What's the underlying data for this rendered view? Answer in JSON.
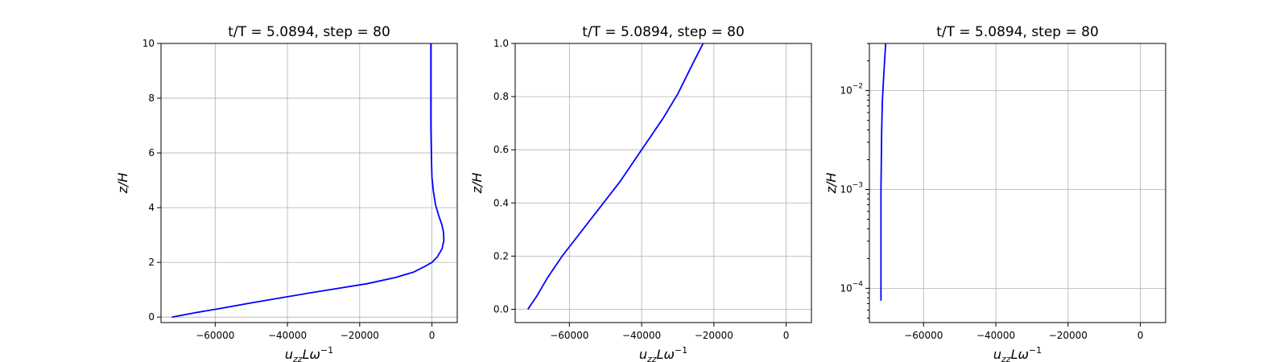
{
  "chart_data": [
    {
      "type": "line",
      "title": "t/T = 5.0894, step = 80",
      "xlabel": "u_zz L ω^-1",
      "ylabel": "z/H",
      "xlim": [
        -75000,
        7000
      ],
      "ylim": [
        -0.2,
        10
      ],
      "yscale": "linear",
      "xticks": [
        -60000,
        -40000,
        -20000,
        0
      ],
      "xtick_labels": [
        "−60000",
        "−40000",
        "−20000",
        "0"
      ],
      "yticks": [
        0,
        2,
        4,
        6,
        8,
        10
      ],
      "ytick_labels": [
        "0",
        "2",
        "4",
        "6",
        "8",
        "10"
      ],
      "grid": true,
      "series": [
        {
          "color": "#0000ff",
          "x": [
            -72000,
            -66000,
            -58000,
            -50000,
            -42000,
            -34000,
            -26000,
            -18000,
            -10000,
            -5000,
            -2000,
            0,
            1500,
            2800,
            3300,
            3200,
            2700,
            1900,
            1000,
            400,
            0,
            -100,
            -200,
            -300,
            -300,
            -300,
            -300
          ],
          "y": [
            0,
            0.15,
            0.33,
            0.52,
            0.7,
            0.88,
            1.05,
            1.22,
            1.45,
            1.65,
            1.85,
            2.0,
            2.2,
            2.5,
            2.8,
            3.1,
            3.4,
            3.7,
            4.1,
            4.6,
            5.1,
            5.6,
            6.2,
            7.0,
            8.0,
            9.0,
            10.0
          ]
        }
      ]
    },
    {
      "type": "line",
      "title": "t/T = 5.0894, step = 80",
      "xlabel": "u_zz L ω^-1",
      "ylabel": "z/H",
      "xlim": [
        -75000,
        7000
      ],
      "ylim": [
        -0.05,
        1.0
      ],
      "yscale": "linear",
      "xticks": [
        -60000,
        -40000,
        -20000,
        0
      ],
      "xtick_labels": [
        "−60000",
        "−40000",
        "−20000",
        "0"
      ],
      "yticks": [
        0,
        0.2,
        0.4,
        0.6,
        0.8,
        1.0
      ],
      "ytick_labels": [
        "0.0",
        "0.2",
        "0.4",
        "0.6",
        "0.8",
        "1.0"
      ],
      "grid": true,
      "series": [
        {
          "color": "#0000ff",
          "x": [
            -71500,
            -69000,
            -66000,
            -62000,
            -58000,
            -54000,
            -50000,
            -46000,
            -42000,
            -38000,
            -34000,
            -30000,
            -26000,
            -23000
          ],
          "y": [
            0,
            0.05,
            0.12,
            0.2,
            0.27,
            0.34,
            0.41,
            0.48,
            0.56,
            0.64,
            0.72,
            0.81,
            0.92,
            1.0
          ]
        }
      ]
    },
    {
      "type": "line",
      "title": "t/T = 5.0894, step = 80",
      "xlabel": "u_zz L ω^-1",
      "ylabel": "z/H",
      "xlim": [
        -75000,
        7000
      ],
      "ylim": [
        4.5e-05,
        0.03
      ],
      "yscale": "log",
      "xticks": [
        -60000,
        -40000,
        -20000,
        0
      ],
      "xtick_labels": [
        "−60000",
        "−40000",
        "−20000",
        "0"
      ],
      "yticks": [
        0.0001,
        0.001,
        0.01
      ],
      "ytick_labels": [
        "10^-4",
        "10^-3",
        "10^-2"
      ],
      "grid": true,
      "series": [
        {
          "color": "#0000ff",
          "x": [
            -71800,
            -71800,
            -71800,
            -71800,
            -71800,
            -71700,
            -71600,
            -71400,
            -71000,
            -70500
          ],
          "y": [
            7.5e-05,
            0.0001,
            0.0002,
            0.0005,
            0.001,
            0.002,
            0.004,
            0.008,
            0.015,
            0.03
          ]
        }
      ]
    }
  ]
}
